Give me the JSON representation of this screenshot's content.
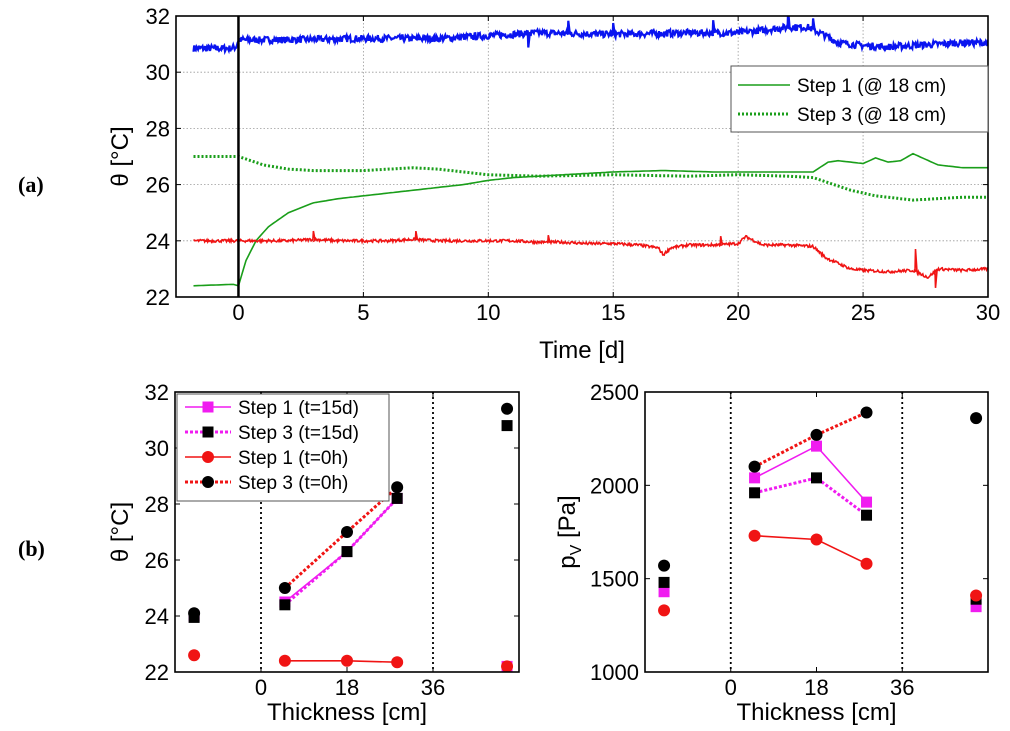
{
  "panel_labels": {
    "a": "(a)",
    "b": "(b)"
  },
  "colors": {
    "blue": "#0a14f0",
    "green": "#1a9e1a",
    "red": "#f01414",
    "magenta": "#f01cf0",
    "black": "#000000",
    "grid": "#9a9a9a"
  },
  "chart_data": [
    {
      "id": "a",
      "type": "line",
      "xlabel": "Time [d]",
      "ylabel": "θ [°C]",
      "xlim": [
        -2.5,
        30
      ],
      "ylim": [
        22,
        32
      ],
      "xticks": [
        0,
        5,
        10,
        15,
        20,
        25,
        30
      ],
      "yticks": [
        22,
        24,
        26,
        28,
        30,
        32
      ],
      "grid": true,
      "vline_x": 0,
      "legend_position": "top-right",
      "series": [
        {
          "name": "",
          "color": "blue",
          "style": "solid",
          "in_legend": false,
          "noise": 0.12,
          "x": [
            -1.8,
            -0.3,
            -0.1,
            0,
            2,
            5,
            8,
            10,
            12,
            15,
            18,
            20,
            21,
            22,
            22.8,
            23.5,
            24,
            25,
            26,
            27,
            28,
            29,
            30
          ],
          "y": [
            30.85,
            30.85,
            30.9,
            31.15,
            31.15,
            31.2,
            31.2,
            31.3,
            31.4,
            31.35,
            31.4,
            31.4,
            31.5,
            31.6,
            31.6,
            31.3,
            31.05,
            30.95,
            30.9,
            30.95,
            31.0,
            31.05,
            31.05
          ]
        },
        {
          "name": "Step 1 (@ 18 cm)",
          "color": "green",
          "style": "solid",
          "in_legend": true,
          "noise": 0,
          "x": [
            -1.8,
            -0.2,
            0,
            0.3,
            0.7,
            1.2,
            2,
            3,
            4,
            5,
            6,
            7,
            8,
            9,
            10,
            11,
            12,
            13,
            15,
            17,
            19,
            21,
            22,
            23,
            23.6,
            24,
            24.5,
            25,
            25.5,
            26,
            26.5,
            27,
            27.5,
            28,
            29,
            30
          ],
          "y": [
            22.4,
            22.45,
            22.4,
            23.3,
            24.0,
            24.5,
            25.0,
            25.35,
            25.5,
            25.6,
            25.7,
            25.8,
            25.9,
            26.0,
            26.15,
            26.25,
            26.3,
            26.35,
            26.45,
            26.5,
            26.45,
            26.45,
            26.45,
            26.45,
            26.8,
            26.85,
            26.8,
            26.75,
            26.95,
            26.8,
            26.85,
            27.1,
            26.9,
            26.7,
            26.6,
            26.6
          ]
        },
        {
          "name": "Step 3 (@ 18 cm)",
          "color": "green",
          "style": "dotted",
          "in_legend": true,
          "noise": 0,
          "x": [
            -1.8,
            -0.3,
            0,
            0.5,
            1,
            2,
            3,
            5,
            7,
            8,
            9,
            10,
            12,
            15,
            18,
            20,
            22,
            23,
            23.5,
            24,
            24.5,
            25,
            25.5,
            26,
            27,
            28,
            29,
            30
          ],
          "y": [
            27.0,
            27.0,
            27.0,
            26.85,
            26.7,
            26.55,
            26.5,
            26.5,
            26.6,
            26.55,
            26.45,
            26.35,
            26.3,
            26.35,
            26.3,
            26.35,
            26.3,
            26.25,
            26.1,
            25.95,
            25.8,
            25.7,
            25.6,
            25.55,
            25.45,
            25.5,
            25.55,
            25.55
          ]
        },
        {
          "name": "",
          "color": "red",
          "style": "solid",
          "in_legend": false,
          "noise": 0.05,
          "x": [
            -1.8,
            -0.5,
            0,
            1,
            2,
            3,
            4,
            5,
            6,
            7,
            8,
            9,
            10,
            11,
            12,
            13,
            14,
            15,
            16,
            16.8,
            17,
            17.3,
            18,
            19,
            20,
            20.3,
            21,
            22,
            23,
            23.5,
            24,
            24.5,
            25,
            26,
            27,
            27.6,
            28,
            29,
            30
          ],
          "y": [
            24.0,
            24.0,
            24.0,
            24.0,
            24.0,
            24.05,
            24.0,
            24.0,
            24.0,
            24.05,
            24.0,
            24.0,
            24.0,
            24.0,
            23.95,
            23.95,
            23.9,
            23.9,
            23.85,
            23.75,
            23.5,
            23.75,
            23.85,
            23.85,
            23.9,
            24.15,
            23.85,
            23.85,
            23.8,
            23.4,
            23.2,
            23.0,
            22.95,
            22.9,
            22.95,
            22.7,
            23.0,
            22.95,
            23.0
          ]
        }
      ],
      "spikes": [
        {
          "series": 0,
          "x": 22.0,
          "dy": 0.6
        },
        {
          "series": 0,
          "x": 19.0,
          "dy": 0.45
        },
        {
          "series": 0,
          "x": 15.0,
          "dy": 0.4
        },
        {
          "series": 0,
          "x": 13.2,
          "dy": 0.45
        },
        {
          "series": 0,
          "x": 11.6,
          "dy": -0.5
        },
        {
          "series": 0,
          "x": 23.0,
          "dy": 0.4
        },
        {
          "series": 3,
          "x": 27.1,
          "dy": 0.8
        },
        {
          "series": 3,
          "x": 27.9,
          "dy": -0.6
        },
        {
          "series": 3,
          "x": 3.0,
          "dy": 0.3
        },
        {
          "series": 3,
          "x": 7.1,
          "dy": 0.3
        },
        {
          "series": 3,
          "x": 12.4,
          "dy": 0.25
        },
        {
          "series": 3,
          "x": 19.3,
          "dy": 0.3
        }
      ]
    },
    {
      "id": "b1",
      "type": "line",
      "xlabel": "Thickness [cm]",
      "ylabel": "θ [°C]",
      "xlim": [
        -18,
        54
      ],
      "ylim": [
        22,
        32
      ],
      "xticks": [
        0,
        18,
        36
      ],
      "yticks": [
        22,
        24,
        26,
        28,
        30,
        32
      ],
      "grid": false,
      "vlines_dotted": [
        0,
        36
      ],
      "legend_position": "top-left",
      "series": [
        {
          "name": "Step 1 (t=15d)",
          "color": "magenta",
          "style": "solid",
          "marker": "square",
          "x": [
            5,
            18,
            28.5
          ],
          "y": [
            24.5,
            26.3,
            28.2
          ],
          "outliers": [
            [
              -14,
              24.0
            ],
            [
              51.5,
              22.2
            ]
          ]
        },
        {
          "name": "Step 3 (t=15d)",
          "color": "black",
          "style": "dotted-magenta",
          "marker": "square",
          "x": [
            5,
            18,
            28.5
          ],
          "y": [
            24.4,
            26.3,
            28.2
          ],
          "outliers": [
            [
              -14,
              23.95
            ],
            [
              51.5,
              30.8
            ]
          ]
        },
        {
          "name": "Step 1 (t=0h)",
          "color": "red",
          "style": "solid",
          "marker": "circle",
          "x": [
            5,
            18,
            28.5
          ],
          "y": [
            22.4,
            22.4,
            22.35
          ],
          "outliers": [
            [
              -14,
              22.6
            ],
            [
              51.5,
              22.2
            ]
          ]
        },
        {
          "name": "Step 3 (t=0h)",
          "color": "black",
          "style": "dotted-red",
          "marker": "circle",
          "x": [
            5,
            18,
            28.5
          ],
          "y": [
            25.0,
            27.0,
            28.6
          ],
          "outliers": [
            [
              -14,
              24.1
            ],
            [
              51.5,
              31.4
            ]
          ]
        }
      ]
    },
    {
      "id": "b2",
      "type": "line",
      "xlabel": "Thickness [cm]",
      "ylabel": "p",
      "ylabel_sub": "V",
      "ylabel_unit": " [Pa]",
      "xlim": [
        -18,
        54
      ],
      "ylim": [
        1000,
        2500
      ],
      "xticks": [
        0,
        18,
        36
      ],
      "yticks": [
        1000,
        1500,
        2000,
        2500
      ],
      "grid": false,
      "vlines_dotted": [
        0,
        36
      ],
      "series": [
        {
          "name": "Step 1 (t=15d)",
          "color": "magenta",
          "style": "solid",
          "marker": "square",
          "x": [
            5,
            18,
            28.5
          ],
          "y": [
            2040,
            2210,
            1910
          ],
          "outliers": [
            [
              -14,
              1430
            ],
            [
              51.5,
              1350
            ]
          ]
        },
        {
          "name": "Step 3 (t=15d)",
          "color": "black",
          "style": "dotted-magenta",
          "marker": "square",
          "x": [
            5,
            18,
            28.5
          ],
          "y": [
            1960,
            2040,
            1840
          ],
          "outliers": [
            [
              -14,
              1480
            ],
            [
              51.5,
              1390
            ]
          ]
        },
        {
          "name": "Step 1 (t=0h)",
          "color": "red",
          "style": "solid",
          "marker": "circle",
          "x": [
            5,
            18,
            28.5
          ],
          "y": [
            1730,
            1710,
            1580
          ],
          "outliers": [
            [
              -14,
              1330
            ],
            [
              51.5,
              1410
            ]
          ]
        },
        {
          "name": "Step 3 (t=0h)",
          "color": "black",
          "style": "dotted-red",
          "marker": "circle",
          "x": [
            5,
            18,
            28.5
          ],
          "y": [
            2100,
            2270,
            2390
          ],
          "outliers": [
            [
              -14,
              1570
            ],
            [
              51.5,
              2360
            ]
          ]
        }
      ]
    }
  ]
}
